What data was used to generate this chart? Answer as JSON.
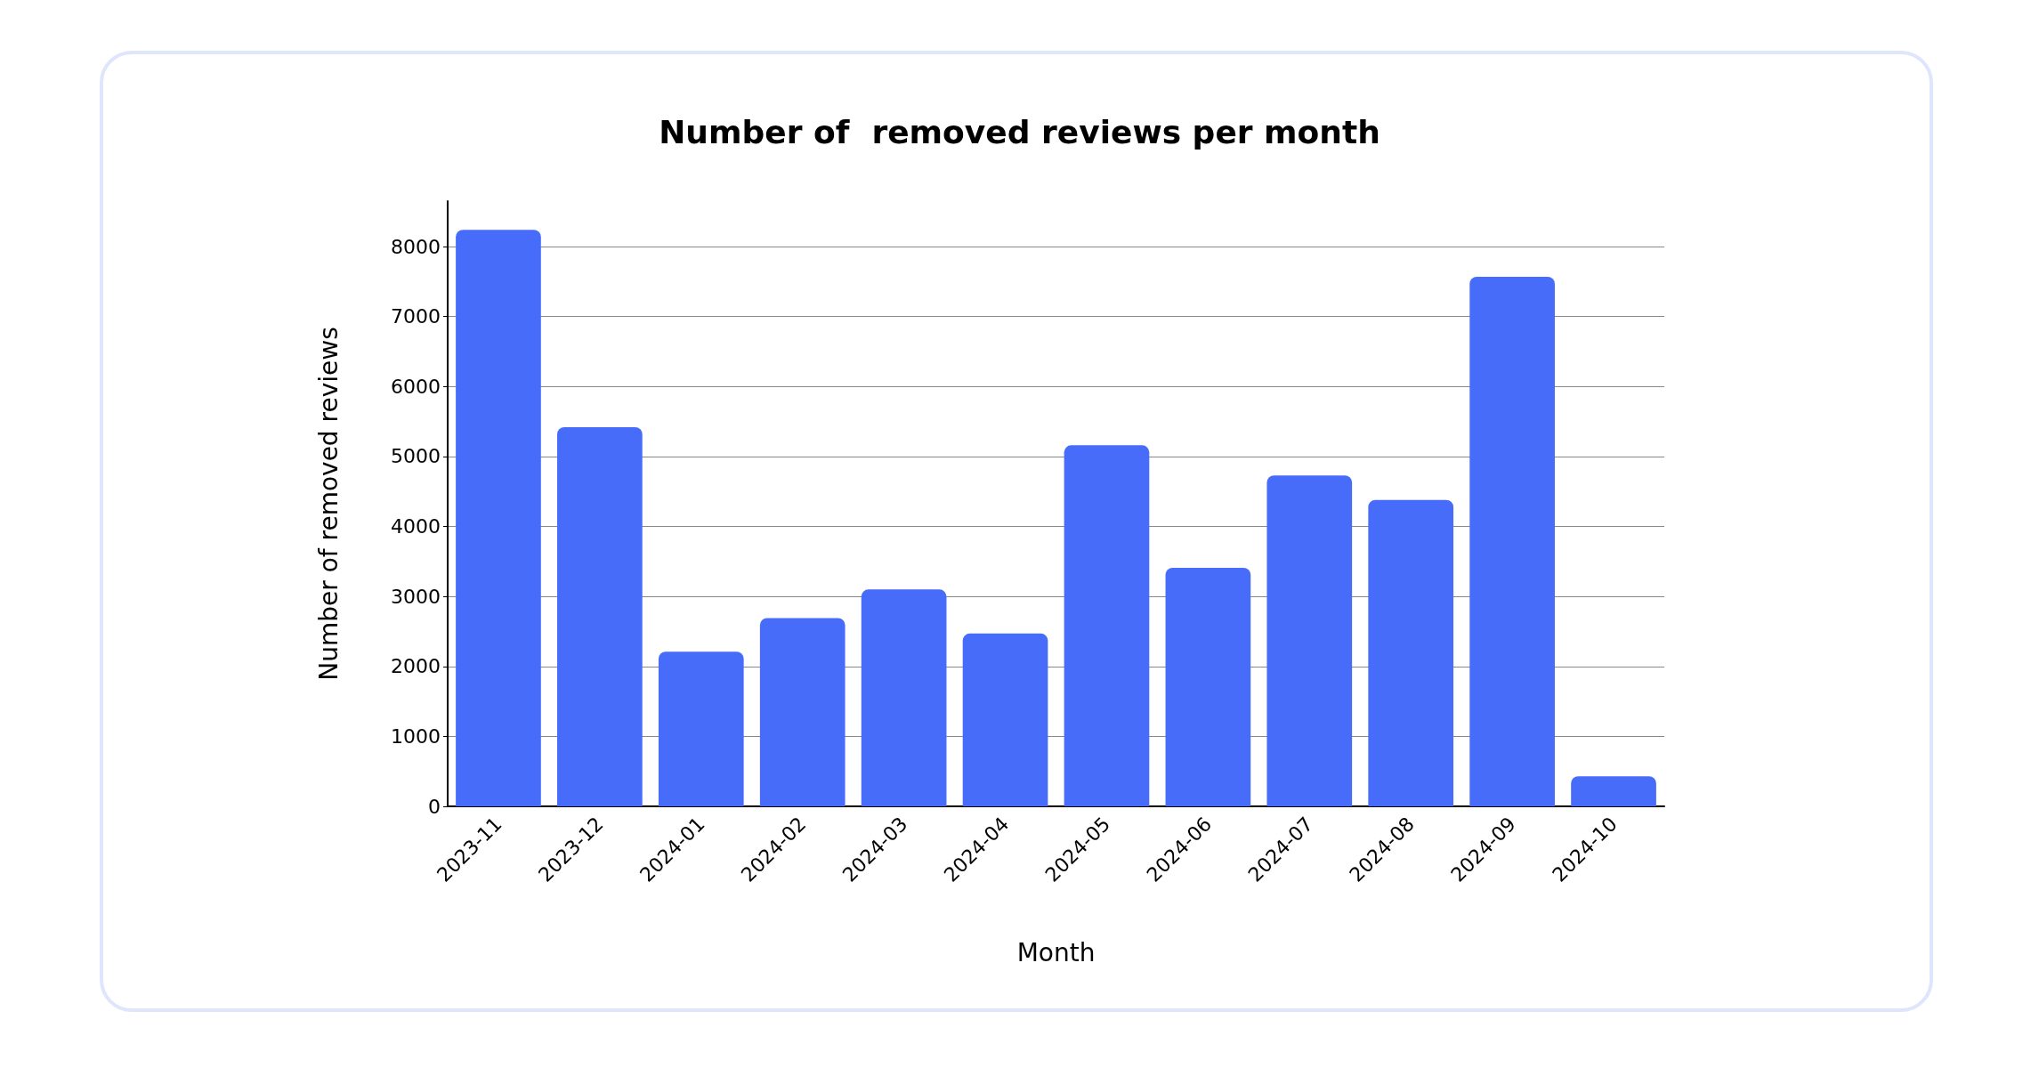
{
  "chart_data": {
    "type": "bar",
    "title": "Number of  removed reviews per month",
    "xlabel": "Month",
    "ylabel": "Number of removed reviews",
    "categories": [
      "2023-11",
      "2023-12",
      "2024-01",
      "2024-02",
      "2024-03",
      "2024-04",
      "2024-05",
      "2024-06",
      "2024-07",
      "2024-08",
      "2024-09",
      "2024-10"
    ],
    "values": [
      8240,
      5420,
      2210,
      2690,
      3100,
      2470,
      5160,
      3410,
      4730,
      4380,
      7570,
      430
    ],
    "color": "#486cfa",
    "ylim": [
      0,
      8650
    ],
    "yticks": [
      0,
      1000,
      2000,
      3000,
      4000,
      5000,
      6000,
      7000,
      8000
    ],
    "grid": "y"
  }
}
